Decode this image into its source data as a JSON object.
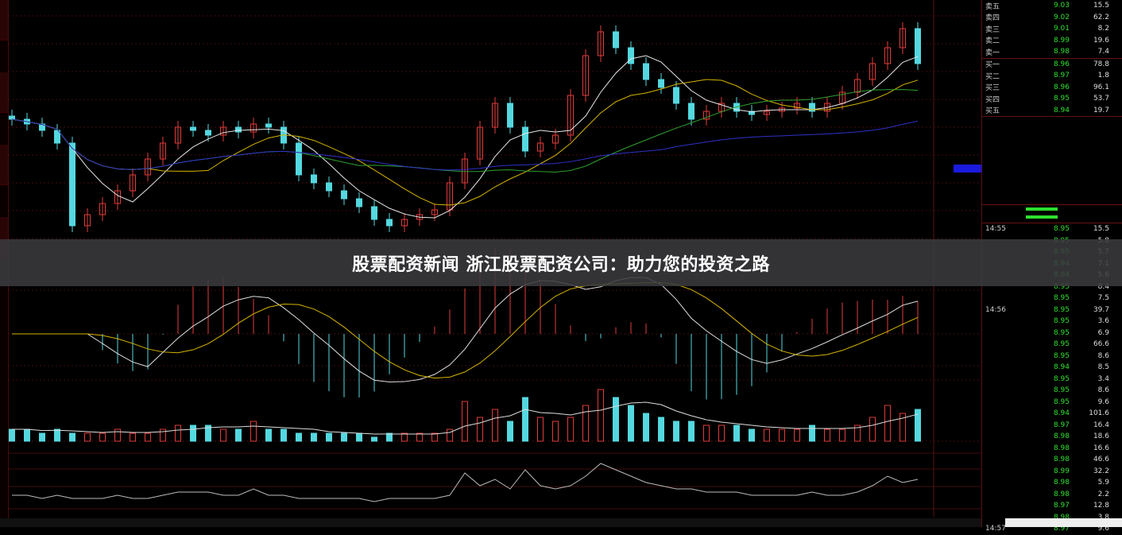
{
  "banner": {
    "title": "股票配资新闻 浙江股票配资公司：助力您的投资之路"
  },
  "colors": {
    "up": "#e23b3b",
    "down": "#54d8e0",
    "ma5": "#e8e8e8",
    "ma10": "#d6b400",
    "ma30": "#2f9f2f",
    "ma60": "#3030c8",
    "grid": "#5a1010",
    "background": "#000000"
  },
  "chart_data": {
    "type": "candlestick",
    "closes": [
      9.35,
      9.32,
      9.28,
      9.2,
      8.68,
      8.75,
      8.82,
      8.9,
      9.0,
      9.1,
      9.2,
      9.3,
      9.28,
      9.25,
      9.3,
      9.27,
      9.32,
      9.3,
      9.2,
      9.0,
      8.95,
      8.9,
      8.85,
      8.8,
      8.72,
      8.68,
      8.72,
      8.75,
      8.78,
      8.95,
      9.1,
      9.3,
      9.45,
      9.3,
      9.15,
      9.2,
      9.25,
      9.5,
      9.75,
      9.9,
      9.8,
      9.7,
      9.6,
      9.55,
      9.45,
      9.35,
      9.4,
      9.45,
      9.4,
      9.38,
      9.4,
      9.42,
      9.45,
      9.4,
      9.45,
      9.52,
      9.6,
      9.7,
      9.8,
      9.92,
      9.7
    ],
    "volumes": [
      3,
      3,
      2,
      3,
      2,
      2,
      2,
      3,
      2,
      2,
      3,
      4,
      4,
      4,
      3,
      3,
      5,
      3,
      3,
      2,
      2,
      2,
      2,
      2,
      1,
      2,
      2,
      2,
      2,
      3,
      10,
      6,
      8,
      5,
      11,
      6,
      5,
      6,
      9,
      13,
      11,
      9,
      7,
      6,
      5,
      5,
      4,
      4,
      4,
      3,
      3,
      3,
      3,
      4,
      3,
      3,
      4,
      6,
      9,
      7,
      8
    ],
    "ylim": [
      8.6,
      10.0
    ],
    "grid": true
  },
  "side": {
    "quotes": [
      {
        "label": "卖五",
        "price": "9.03",
        "vol": "15.5"
      },
      {
        "label": "卖四",
        "price": "9.02",
        "vol": "62.2"
      },
      {
        "label": "卖三",
        "price": "9.01",
        "vol": "8.2"
      },
      {
        "label": "卖二",
        "price": "8.99",
        "vol": "19.6"
      },
      {
        "label": "卖一",
        "price": "8.98",
        "vol": "7.4"
      },
      {
        "label": "买一",
        "price": "8.96",
        "vol": "78.8"
      },
      {
        "label": "买二",
        "price": "8.97",
        "vol": "1.8"
      },
      {
        "label": "买三",
        "price": "8.96",
        "vol": "96.1"
      },
      {
        "label": "买四",
        "price": "8.95",
        "vol": "53.7"
      },
      {
        "label": "买五",
        "price": "8.94",
        "vol": "19.7"
      }
    ],
    "ticks": [
      {
        "time": "14:55",
        "price": "8.95",
        "vol": "15.5"
      },
      {
        "time": "",
        "price": "8.95",
        "vol": "5.8"
      },
      {
        "time": "",
        "price": "8.95",
        "vol": "5.7"
      },
      {
        "time": "",
        "price": "8.94",
        "vol": "7.1"
      },
      {
        "time": "",
        "price": "8.94",
        "vol": "5.6"
      },
      {
        "time": "",
        "price": "8.95",
        "vol": "8.4"
      },
      {
        "time": "",
        "price": "8.95",
        "vol": "7.5"
      },
      {
        "time": "14:56",
        "price": "8.95",
        "vol": "39.7"
      },
      {
        "time": "",
        "price": "8.95",
        "vol": "3.6"
      },
      {
        "time": "",
        "price": "8.95",
        "vol": "6.9"
      },
      {
        "time": "",
        "price": "8.95",
        "vol": "66.6"
      },
      {
        "time": "",
        "price": "8.95",
        "vol": "8.6"
      },
      {
        "time": "",
        "price": "8.94",
        "vol": "8.5"
      },
      {
        "time": "",
        "price": "8.95",
        "vol": "3.4"
      },
      {
        "time": "",
        "price": "8.95",
        "vol": "8.6"
      },
      {
        "time": "",
        "price": "8.95",
        "vol": "9.6"
      },
      {
        "time": "",
        "price": "8.94",
        "vol": "101.6"
      },
      {
        "time": "",
        "price": "8.97",
        "vol": "16.4"
      },
      {
        "time": "",
        "price": "8.98",
        "vol": "18.6"
      },
      {
        "time": "",
        "price": "8.98",
        "vol": "16.6"
      },
      {
        "time": "",
        "price": "8.98",
        "vol": "46.6"
      },
      {
        "time": "",
        "price": "8.99",
        "vol": "32.2"
      },
      {
        "time": "",
        "price": "8.98",
        "vol": "5.9"
      },
      {
        "time": "",
        "price": "8.98",
        "vol": "2.2"
      },
      {
        "time": "",
        "price": "8.97",
        "vol": "12.8"
      },
      {
        "time": "",
        "price": "8.98",
        "vol": "3.8"
      },
      {
        "time": "14:57",
        "price": "8.97",
        "vol": "9.6"
      }
    ]
  }
}
